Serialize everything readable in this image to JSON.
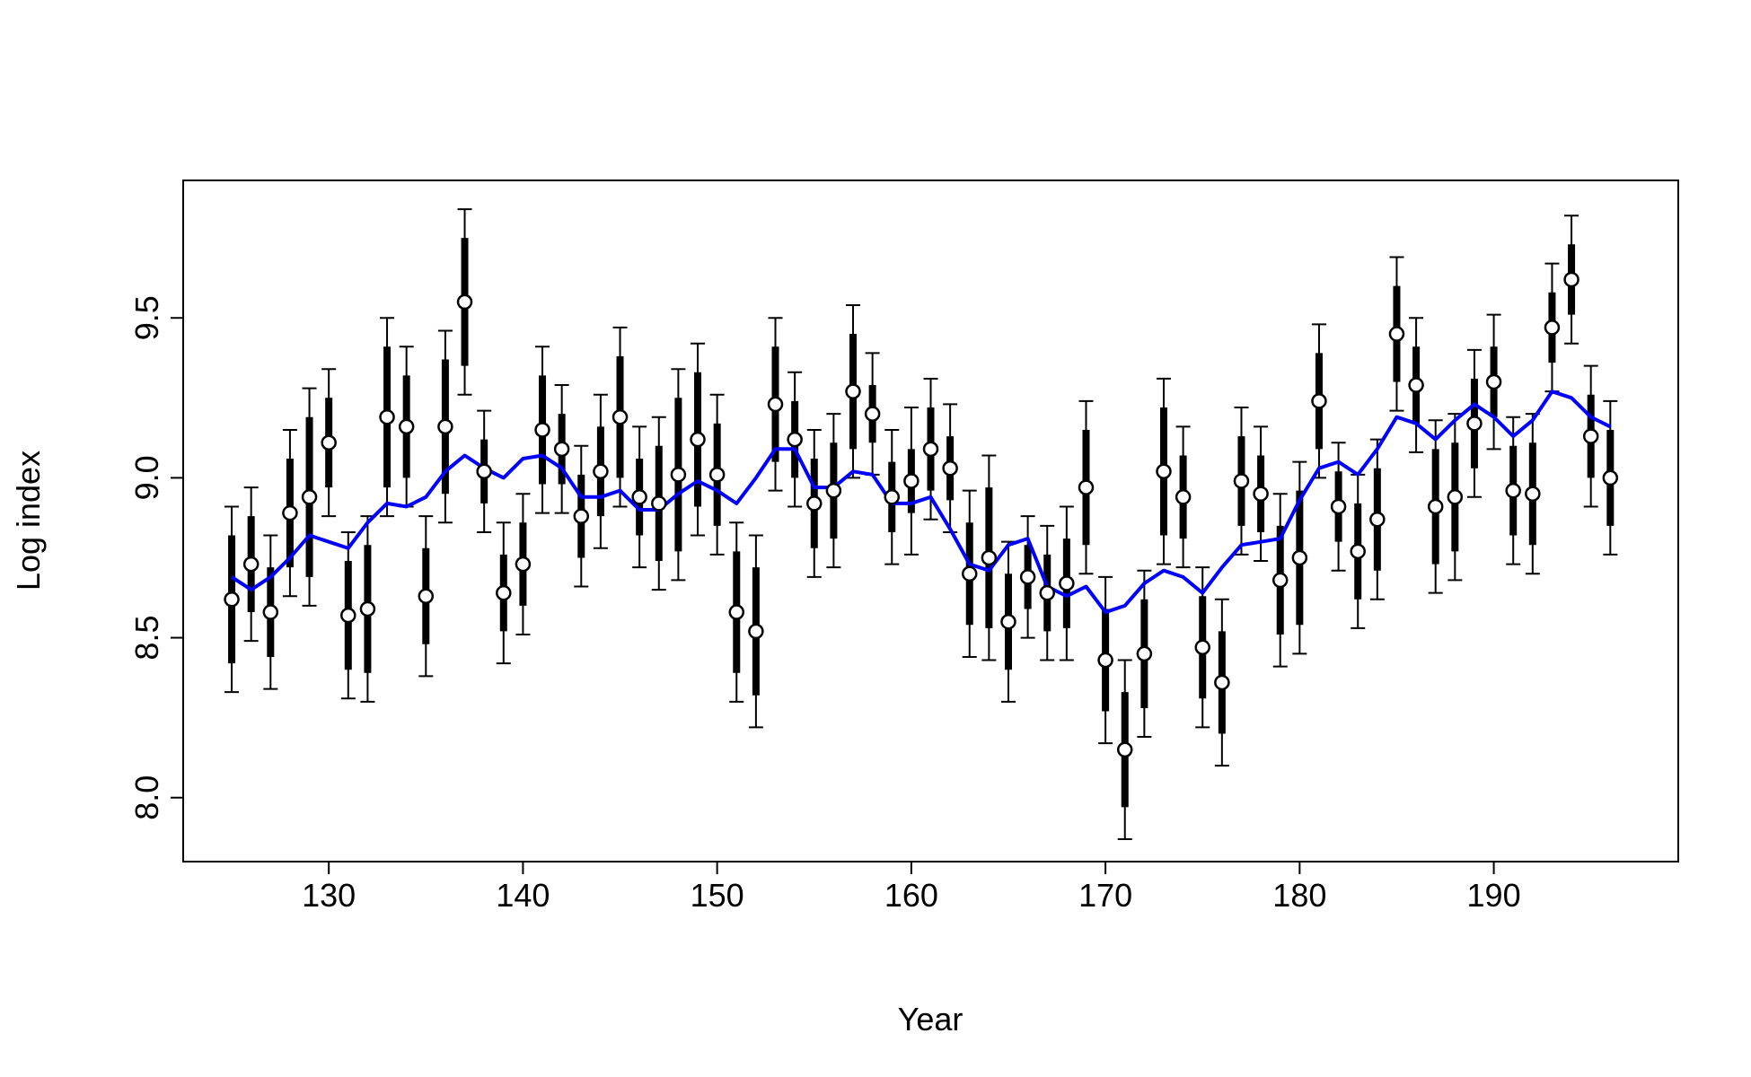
{
  "chart_data": {
    "type": "scatter",
    "title": "",
    "xlabel": "Year",
    "ylabel": "Log index",
    "xlim": [
      122.5,
      199.5
    ],
    "ylim": [
      7.8,
      9.93
    ],
    "xticks": [
      130,
      140,
      150,
      160,
      170,
      180,
      190
    ],
    "xtick_labels": [
      "130",
      "140",
      "150",
      "160",
      "170",
      "180",
      "190"
    ],
    "yticks": [
      8.0,
      8.5,
      9.0,
      9.5
    ],
    "ytick_labels": [
      "8.0",
      "8.5",
      "9.0",
      "9.5"
    ],
    "grid": false,
    "legend": "none",
    "colors": {
      "points": "#000000",
      "point_fill": "#ffffff",
      "fitted": "#0000ff"
    },
    "series": [
      {
        "kind": "observed_with_intervals",
        "x": [
          125,
          126,
          127,
          128,
          129,
          130,
          131,
          132,
          133,
          134,
          135,
          136,
          137,
          138,
          139,
          140,
          141,
          142,
          143,
          144,
          145,
          146,
          147,
          148,
          149,
          150,
          151,
          152,
          153,
          154,
          155,
          156,
          157,
          158,
          159,
          160,
          161,
          162,
          163,
          164,
          165,
          166,
          167,
          168,
          169,
          170,
          171,
          172,
          173,
          174,
          175,
          176,
          177,
          178,
          179,
          180,
          181,
          182,
          183,
          184,
          185,
          186,
          187,
          188,
          189,
          190,
          191,
          192,
          193,
          194,
          195,
          196
        ],
        "y": [
          8.62,
          8.73,
          8.58,
          8.89,
          8.94,
          9.11,
          8.57,
          8.59,
          9.19,
          9.16,
          8.63,
          9.16,
          9.55,
          9.02,
          8.64,
          8.73,
          9.15,
          9.09,
          8.88,
          9.02,
          9.19,
          8.94,
          8.92,
          9.01,
          9.12,
          9.01,
          8.58,
          8.52,
          9.23,
          9.12,
          8.92,
          8.96,
          9.27,
          9.2,
          8.94,
          8.99,
          9.09,
          9.03,
          8.7,
          8.75,
          8.55,
          8.69,
          8.64,
          8.67,
          8.97,
          8.43,
          8.15,
          8.45,
          9.02,
          8.94,
          8.47,
          8.36,
          8.99,
          8.95,
          8.68,
          8.75,
          9.24,
          8.91,
          8.77,
          8.87,
          9.45,
          9.29,
          8.91,
          8.94,
          9.17,
          9.3,
          8.96,
          8.95,
          9.47,
          9.62,
          9.13,
          9.0
        ],
        "inner_interval": [
          0.2,
          0.15,
          0.14,
          0.17,
          0.25,
          0.14,
          0.17,
          0.2,
          0.22,
          0.16,
          0.15,
          0.21,
          0.2,
          0.1,
          0.12,
          0.13,
          0.17,
          0.11,
          0.13,
          0.14,
          0.19,
          0.12,
          0.18,
          0.24,
          0.21,
          0.16,
          0.19,
          0.2,
          0.18,
          0.12,
          0.14,
          0.15,
          0.18,
          0.09,
          0.11,
          0.1,
          0.13,
          0.1,
          0.16,
          0.22,
          0.15,
          0.1,
          0.12,
          0.14,
          0.18,
          0.16,
          0.18,
          0.17,
          0.2,
          0.13,
          0.16,
          0.16,
          0.14,
          0.12,
          0.17,
          0.21,
          0.15,
          0.11,
          0.15,
          0.16,
          0.15,
          0.12,
          0.18,
          0.17,
          0.14,
          0.11,
          0.14,
          0.16,
          0.11,
          0.11,
          0.13,
          0.15
        ],
        "outer_interval": [
          0.29,
          0.24,
          0.24,
          0.26,
          0.34,
          0.23,
          0.26,
          0.29,
          0.31,
          0.25,
          0.25,
          0.3,
          0.29,
          0.19,
          0.22,
          0.22,
          0.26,
          0.2,
          0.22,
          0.24,
          0.28,
          0.22,
          0.27,
          0.33,
          0.3,
          0.25,
          0.28,
          0.3,
          0.27,
          0.21,
          0.23,
          0.24,
          0.27,
          0.19,
          0.21,
          0.23,
          0.22,
          0.2,
          0.26,
          0.32,
          0.25,
          0.19,
          0.21,
          0.24,
          0.27,
          0.26,
          0.28,
          0.26,
          0.29,
          0.22,
          0.25,
          0.26,
          0.23,
          0.21,
          0.27,
          0.3,
          0.24,
          0.2,
          0.24,
          0.25,
          0.24,
          0.21,
          0.27,
          0.26,
          0.23,
          0.21,
          0.23,
          0.25,
          0.2,
          0.2,
          0.22,
          0.24
        ]
      },
      {
        "kind": "fitted_line",
        "x": [
          125,
          126,
          127,
          128,
          129,
          130,
          131,
          132,
          133,
          134,
          135,
          136,
          137,
          138,
          139,
          140,
          141,
          142,
          143,
          144,
          145,
          146,
          147,
          148,
          149,
          150,
          151,
          152,
          153,
          154,
          155,
          156,
          157,
          158,
          159,
          160,
          161,
          162,
          163,
          164,
          165,
          166,
          167,
          168,
          169,
          170,
          171,
          172,
          173,
          174,
          175,
          176,
          177,
          178,
          179,
          180,
          181,
          182,
          183,
          184,
          185,
          186,
          187,
          188,
          189,
          190,
          191,
          192,
          193,
          194,
          195,
          196
        ],
        "y": [
          8.69,
          8.65,
          8.69,
          8.75,
          8.82,
          8.8,
          8.78,
          8.86,
          8.92,
          8.91,
          8.94,
          9.02,
          9.07,
          9.03,
          9.0,
          9.06,
          9.07,
          9.03,
          8.94,
          8.94,
          8.96,
          8.9,
          8.9,
          8.95,
          8.99,
          8.96,
          8.92,
          9.0,
          9.09,
          9.09,
          8.97,
          8.97,
          9.02,
          9.01,
          8.92,
          8.92,
          8.94,
          8.84,
          8.73,
          8.71,
          8.79,
          8.81,
          8.66,
          8.63,
          8.66,
          8.58,
          8.6,
          8.67,
          8.71,
          8.69,
          8.64,
          8.72,
          8.79,
          8.8,
          8.81,
          8.93,
          9.03,
          9.05,
          9.01,
          9.09,
          9.19,
          9.17,
          9.12,
          9.18,
          9.23,
          9.19,
          9.13,
          9.18,
          9.27,
          9.25,
          9.19,
          9.16
        ]
      }
    ]
  }
}
